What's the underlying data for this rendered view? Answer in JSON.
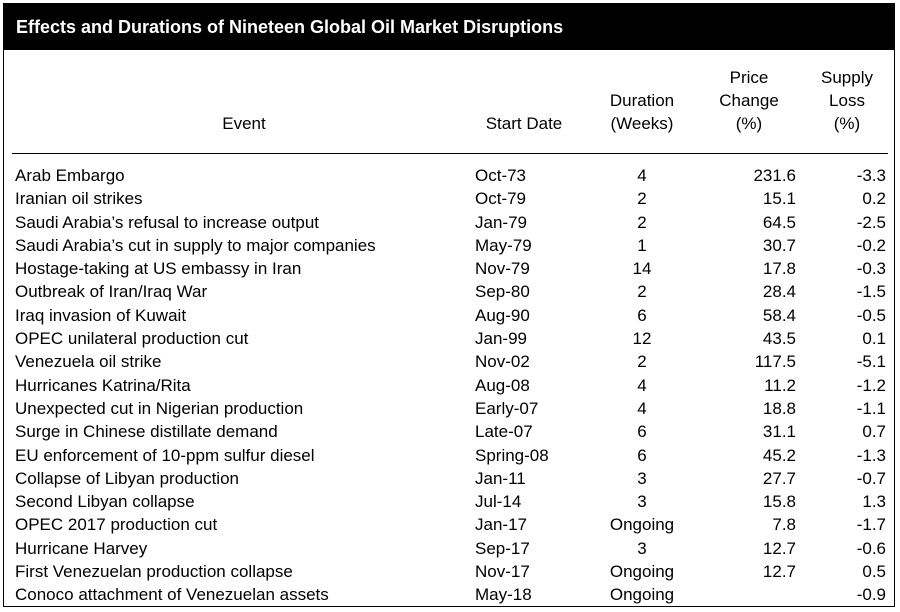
{
  "title": "Effects and Durations of Nineteen Global Oil Market Disruptions",
  "headers": {
    "event": "Event",
    "start_date": "Start Date",
    "duration": "Duration\n(Weeks)",
    "price_change": "Price\nChange\n(%)",
    "supply_loss": "Supply\nLoss\n(%)"
  },
  "rows": [
    {
      "event": "Arab Embargo",
      "start_date": "Oct-73",
      "duration": "4",
      "price_change": "231.6",
      "supply_loss": "-3.3"
    },
    {
      "event": "Iranian oil strikes",
      "start_date": "Oct-79",
      "duration": "2",
      "price_change": "15.1",
      "supply_loss": "0.2"
    },
    {
      "event": "Saudi Arabia’s refusal to increase output",
      "start_date": "Jan-79",
      "duration": "2",
      "price_change": "64.5",
      "supply_loss": "-2.5"
    },
    {
      "event": "Saudi Arabia’s cut in supply to major companies",
      "start_date": "May-79",
      "duration": "1",
      "price_change": "30.7",
      "supply_loss": "-0.2"
    },
    {
      "event": "Hostage-taking at US embassy in Iran",
      "start_date": "Nov-79",
      "duration": "14",
      "price_change": "17.8",
      "supply_loss": "-0.3"
    },
    {
      "event": "Outbreak of Iran/Iraq War",
      "start_date": "Sep-80",
      "duration": "2",
      "price_change": "28.4",
      "supply_loss": "-1.5"
    },
    {
      "event": "Iraq invasion of Kuwait",
      "start_date": "Aug-90",
      "duration": "6",
      "price_change": "58.4",
      "supply_loss": "-0.5"
    },
    {
      "event": "OPEC unilateral production cut",
      "start_date": "Jan-99",
      "duration": "12",
      "price_change": "43.5",
      "supply_loss": "0.1"
    },
    {
      "event": "Venezuela oil strike",
      "start_date": "Nov-02",
      "duration": "2",
      "price_change": "117.5",
      "supply_loss": "-5.1"
    },
    {
      "event": "Hurricanes Katrina/Rita",
      "start_date": "Aug-08",
      "duration": "4",
      "price_change": "11.2",
      "supply_loss": "-1.2"
    },
    {
      "event": "Unexpected cut in Nigerian production",
      "start_date": "Early-07",
      "duration": "4",
      "price_change": "18.8",
      "supply_loss": "-1.1"
    },
    {
      "event": "Surge in Chinese distillate demand",
      "start_date": "Late-07",
      "duration": "6",
      "price_change": "31.1",
      "supply_loss": "0.7"
    },
    {
      "event": "EU enforcement of 10-ppm sulfur diesel",
      "start_date": "Spring-08",
      "duration": "6",
      "price_change": "45.2",
      "supply_loss": "-1.3"
    },
    {
      "event": "Collapse of Libyan production",
      "start_date": "Jan-11",
      "duration": "3",
      "price_change": "27.7",
      "supply_loss": "-0.7"
    },
    {
      "event": "Second Libyan collapse",
      "start_date": "Jul-14",
      "duration": "3",
      "price_change": "15.8",
      "supply_loss": "1.3"
    },
    {
      "event": "OPEC 2017 production cut",
      "start_date": "Jan-17",
      "duration": "Ongoing",
      "price_change": "7.8",
      "supply_loss": "-1.7"
    },
    {
      "event": "Hurricane Harvey",
      "start_date": "Sep-17",
      "duration": "3",
      "price_change": "12.7",
      "supply_loss": "-0.6"
    },
    {
      "event": "First Venezuelan production collapse",
      "start_date": "Nov-17",
      "duration": "Ongoing",
      "price_change": "12.7",
      "supply_loss": "0.5"
    },
    {
      "event": "Conoco attachment of Venezuelan assets",
      "start_date": "May-18",
      "duration": "Ongoing",
      "price_change": "",
      "supply_loss": "-0.9"
    }
  ],
  "colors": {
    "title_background": "#000000",
    "title_text": "#ffffff",
    "body_text": "#000000",
    "border": "#000000"
  }
}
